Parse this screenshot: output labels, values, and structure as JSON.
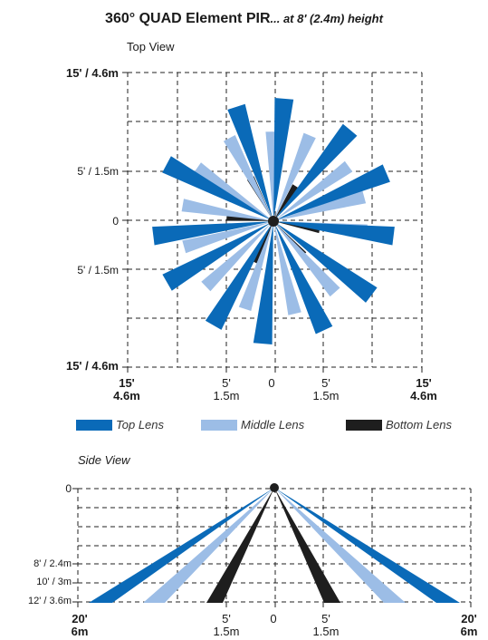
{
  "header": {
    "title": "360° QUAD Element PIR",
    "subtitle": "... at 8' (2.4m) height"
  },
  "top_view": {
    "label": "Top View",
    "y_labels": {
      "top": "15' / 4.6m",
      "upper_mid": "5' / 1.5m",
      "center": "0",
      "lower_mid": "5' / 1.5m",
      "bottom": "15' / 4.6m"
    },
    "x_labels": [
      {
        "ft": "15'",
        "m": "4.6m"
      },
      {
        "ft": "5'",
        "m": "1.5m"
      },
      {
        "ft": "0",
        "m": ""
      },
      {
        "ft": "5'",
        "m": "1.5m"
      },
      {
        "ft": "15'",
        "m": "4.6m"
      }
    ]
  },
  "legend": {
    "items": [
      {
        "label": "Top Lens",
        "color": "#0a6ab8"
      },
      {
        "label": "Middle Lens",
        "color": "#9cbde6"
      },
      {
        "label": "Bottom Lens",
        "color": "#1e1e1e"
      }
    ]
  },
  "side_view": {
    "label": "Side View",
    "y_labels": {
      "top": "0",
      "l8": "8' / 2.4m",
      "l10": "10' / 3m",
      "l12": "12' / 3.6m"
    },
    "x_labels": [
      {
        "ft": "20'",
        "m": "6m"
      },
      {
        "ft": "5'",
        "m": "1.5m"
      },
      {
        "ft": "0",
        "m": ""
      },
      {
        "ft": "5'",
        "m": "1.5m"
      },
      {
        "ft": "20'",
        "m": "6m"
      }
    ]
  },
  "colors": {
    "top_lens": "#0a6ab8",
    "middle_lens": "#9cbde6",
    "bottom_lens": "#1e1e1e",
    "grid": "#222222"
  }
}
